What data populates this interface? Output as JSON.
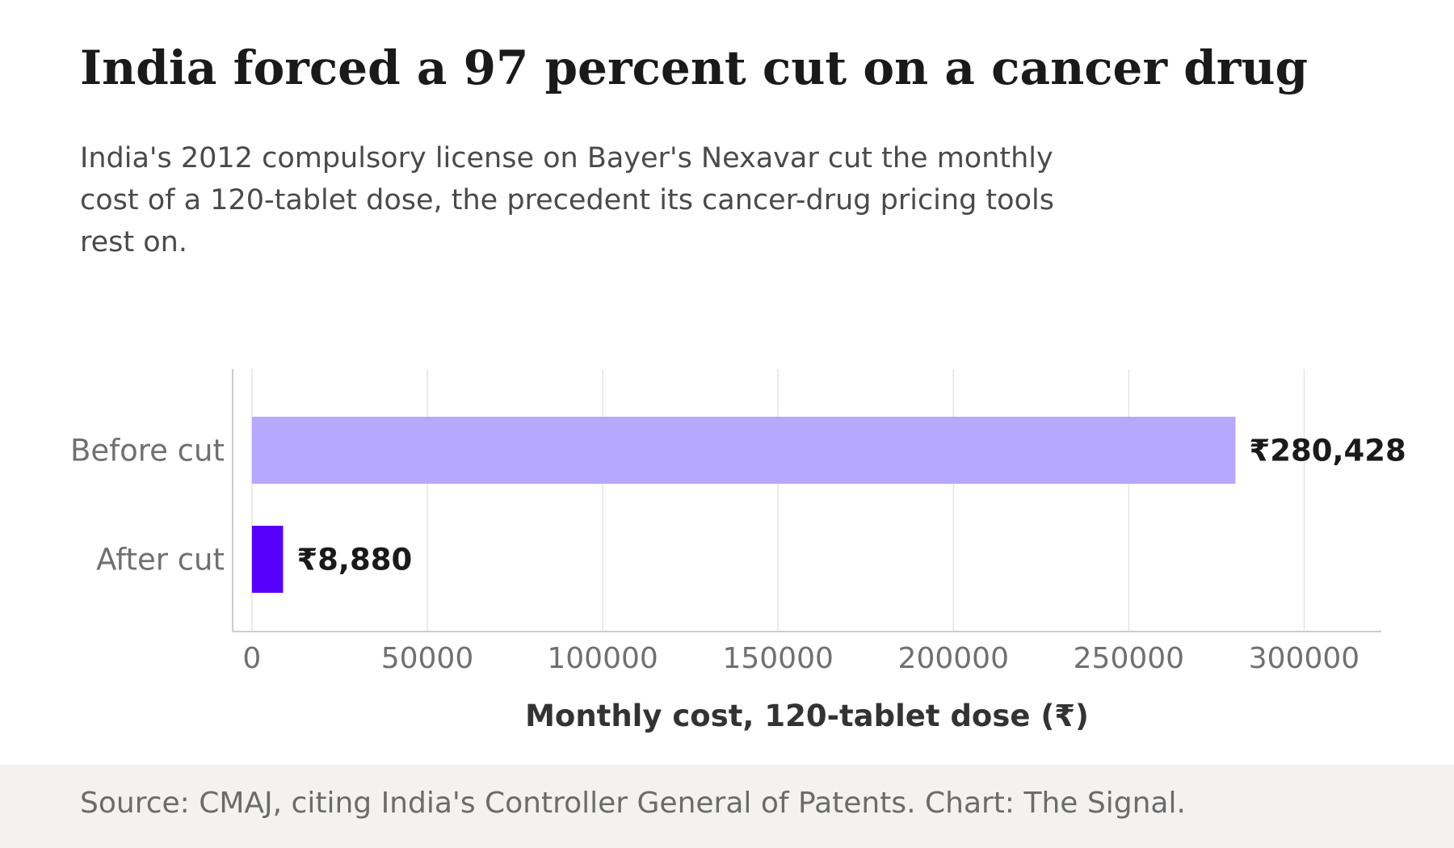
{
  "title": "India forced a 97 percent cut on a cancer drug",
  "subtitle": "India's 2012 compulsory license on Bayer's Nexavar cut the monthly cost of a 120-tablet dose, the precedent its cancer-drug pricing tools rest on.",
  "source": "Source: CMAJ, citing India's Controller General of Patents. Chart: The Signal.",
  "colors": {
    "before_bar": "#b6a8fc",
    "after_bar": "#5500fa",
    "gridline": "#e5e5e5",
    "axis": "#cccccc",
    "tick_text": "#707070",
    "value_label": "#1a1a1a",
    "footer_bg": "#f3f2f1"
  },
  "chart_data": {
    "type": "bar",
    "orientation": "horizontal",
    "categories": [
      "Before cut",
      "After cut"
    ],
    "values": [
      280428,
      8880
    ],
    "value_labels": [
      "₹280,428",
      "₹8,880"
    ],
    "xlabel": "Monthly cost, 120-tablet dose (₹)",
    "ylabel": "",
    "xlim": [
      -5500,
      322000
    ],
    "xticks": [
      0,
      50000,
      100000,
      150000,
      200000,
      250000,
      300000
    ],
    "xtick_labels": [
      "0",
      "50000",
      "100000",
      "150000",
      "200000",
      "250000",
      "300000"
    ],
    "grid": true,
    "legend": "none"
  }
}
